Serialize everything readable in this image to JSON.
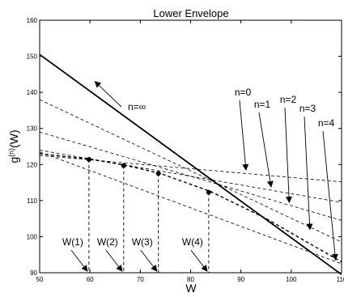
{
  "chart_data": {
    "type": "line",
    "title": "Lower Envelope",
    "xlabel": "W",
    "ylabel": "g",
    "ylabel_sup": "(n)",
    "ylabel_tail": "(W)",
    "xlim": [
      50,
      110
    ],
    "ylim": [
      90,
      160
    ],
    "xticks": [
      "50",
      "60",
      "70",
      "80",
      "90",
      "100",
      "110"
    ],
    "yticks": [
      "90",
      "100",
      "110",
      "120",
      "130",
      "140",
      "150",
      "160"
    ],
    "grid": false,
    "series": [
      {
        "name": "n=∞",
        "style": "solid",
        "x": [
          50,
          110
        ],
        "y": [
          150.5,
          89.5
        ]
      },
      {
        "name": "n=0",
        "style": "dashed",
        "x": [
          50,
          110
        ],
        "y": [
          122.5,
          115.2
        ]
      },
      {
        "name": "n=1",
        "style": "dashed",
        "x": [
          50,
          110
        ],
        "y": [
          124,
          109.5
        ]
      },
      {
        "name": "n=2",
        "style": "dashed",
        "x": [
          50,
          110
        ],
        "y": [
          129,
          104.5
        ]
      },
      {
        "name": "n=3",
        "style": "dashed",
        "x": [
          50,
          110
        ],
        "y": [
          138,
          98.5
        ]
      },
      {
        "name": "n=4",
        "style": "dashed",
        "x": [
          50,
          110
        ],
        "y": [
          123.5,
          92.5
        ]
      },
      {
        "name": "envelope",
        "style": "dashed",
        "x": [
          50,
          60,
          67,
          74,
          84,
          95,
          105,
          110
        ],
        "y": [
          123,
          121.5,
          119.8,
          117.5,
          112.5,
          105,
          97,
          93
        ]
      }
    ],
    "points": [
      {
        "label": "W(1)",
        "x": 59.8,
        "y": 121.4
      },
      {
        "label": "W(2)",
        "x": 66.7,
        "y": 119.7
      },
      {
        "label": "W(3)",
        "x": 73.6,
        "y": 117.5
      },
      {
        "label": "W(4)",
        "x": 83.6,
        "y": 112.3
      }
    ],
    "annotations": [
      {
        "text": "n=∞",
        "arrow_to": [
          61,
          143
        ]
      },
      {
        "text": "n=0",
        "arrow_to": [
          91,
          118.5
        ]
      },
      {
        "text": "n=1",
        "arrow_to": [
          96,
          113.8
        ]
      },
      {
        "text": "n=2",
        "arrow_to": [
          99.6,
          109.5
        ]
      },
      {
        "text": "n=3",
        "arrow_to": [
          103.7,
          102
        ]
      },
      {
        "text": "n=4",
        "arrow_to": [
          108.8,
          93.6
        ]
      }
    ]
  }
}
